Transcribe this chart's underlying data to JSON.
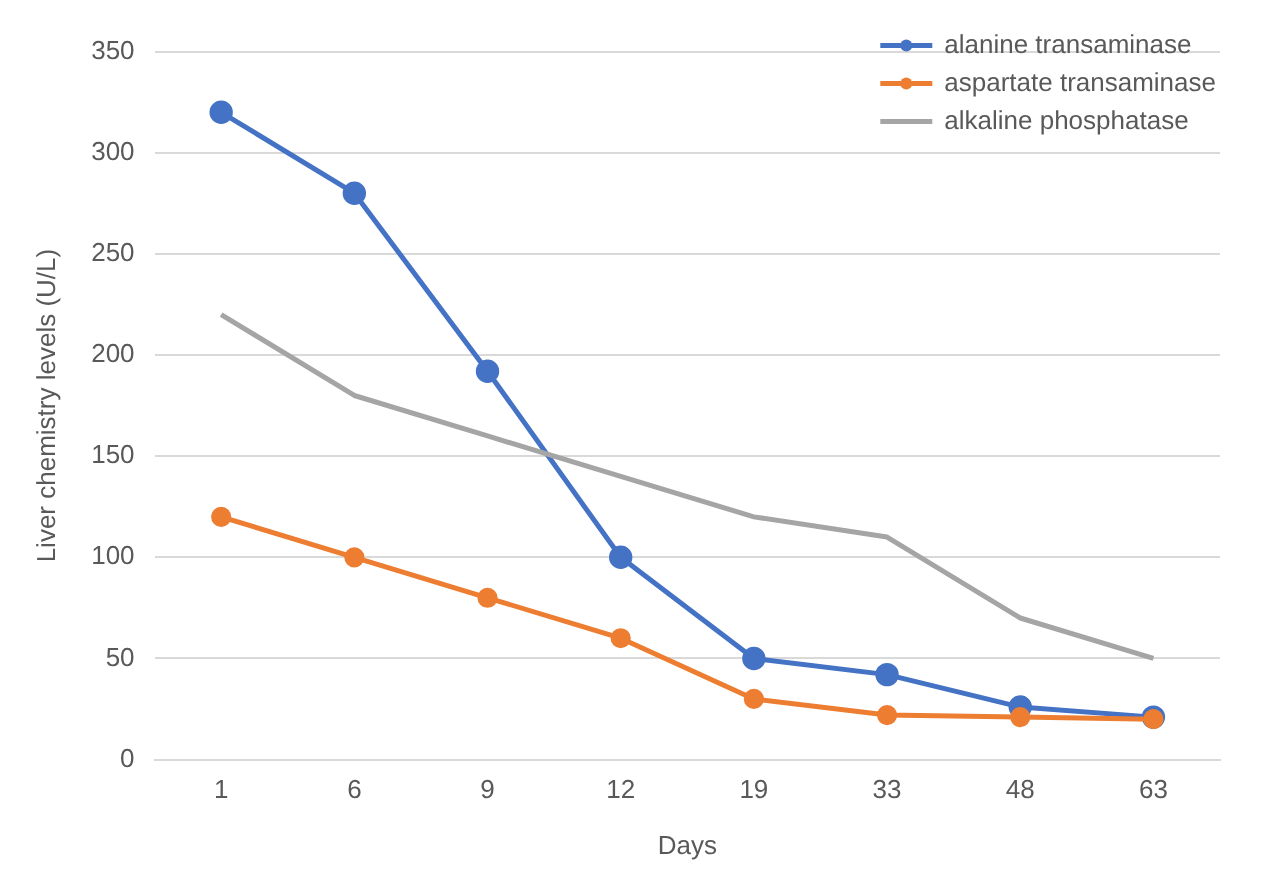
{
  "chart_data": {
    "type": "line",
    "xlabel": "Days",
    "ylabel": "Liver chemistry levels (U/L)",
    "categories": [
      "1",
      "6",
      "9",
      "12",
      "19",
      "33",
      "48",
      "63"
    ],
    "series": [
      {
        "name": "alanine transaminase",
        "color": "#4472c4",
        "marker": "circle",
        "values": [
          320,
          280,
          192,
          100,
          50,
          42,
          26,
          21
        ]
      },
      {
        "name": "aspartate transaminase",
        "color": "#ed7d31",
        "marker": "circle",
        "values": [
          120,
          100,
          80,
          60,
          30,
          22,
          21,
          20
        ]
      },
      {
        "name": "alkaline phosphatase",
        "color": "#a5a5a5",
        "marker": "none",
        "values": [
          220,
          180,
          160,
          140,
          120,
          110,
          70,
          50
        ]
      }
    ],
    "ylim": [
      0,
      350
    ],
    "yticks": [
      0,
      50,
      100,
      150,
      200,
      250,
      300,
      350
    ],
    "grid": "y",
    "legend": "top right"
  }
}
